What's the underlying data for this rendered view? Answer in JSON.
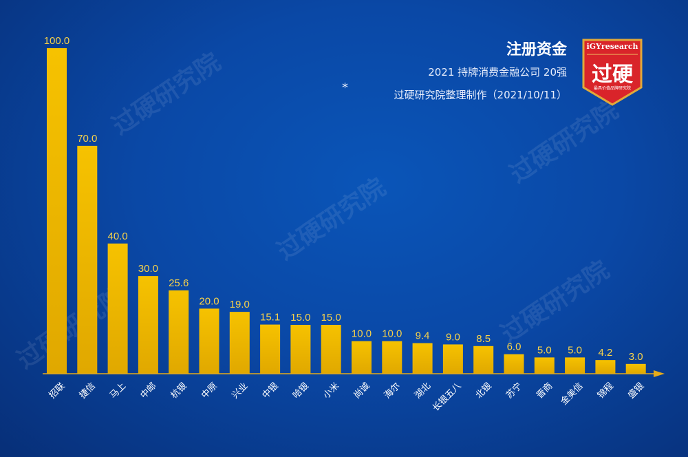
{
  "header": {
    "title": "注册资金",
    "subtitle": "2021 持牌消费金融公司 20强",
    "note_star": "*",
    "note": "过硬研究院整理制作（2021/10/11）"
  },
  "badge": {
    "brand": "iGYresearch",
    "main": "过硬",
    "tagline": "最具价值品牌研究院",
    "color": "#d9242a",
    "border": "#e0a93a"
  },
  "watermark": "过硬研究院",
  "colors": {
    "bar_top": "#f6c200",
    "bar_bottom": "#e0a800",
    "axis": "#e5ab1a",
    "label": "#f7d24a",
    "tick": "#ffffff"
  },
  "chart_data": {
    "type": "bar",
    "categories": [
      "招联",
      "捷信",
      "马上",
      "中邮",
      "杭银",
      "中原",
      "兴业",
      "中银",
      "哈银",
      "小米",
      "尚诚",
      "海尔",
      "湖北",
      "长银五八",
      "北银",
      "苏宁",
      "晋商",
      "金美信",
      "锦程",
      "盛银"
    ],
    "values": [
      100.0,
      70.0,
      40.0,
      30.0,
      25.6,
      20.0,
      19.0,
      15.1,
      15.0,
      15.0,
      10.0,
      10.0,
      9.4,
      9.0,
      8.5,
      6.0,
      5.0,
      5.0,
      4.2,
      3.0
    ],
    "value_labels": [
      "100.0",
      "70.0",
      "40.0",
      "30.0",
      "25.6",
      "20.0",
      "19.0",
      "15.1",
      "15.0",
      "15.0",
      "10.0",
      "10.0",
      "9.4",
      "9.0",
      "8.5",
      "6.0",
      "5.0",
      "5.0",
      "4.2",
      "3.0"
    ],
    "ylim": [
      0,
      100
    ],
    "grid": false,
    "legend": "none"
  }
}
